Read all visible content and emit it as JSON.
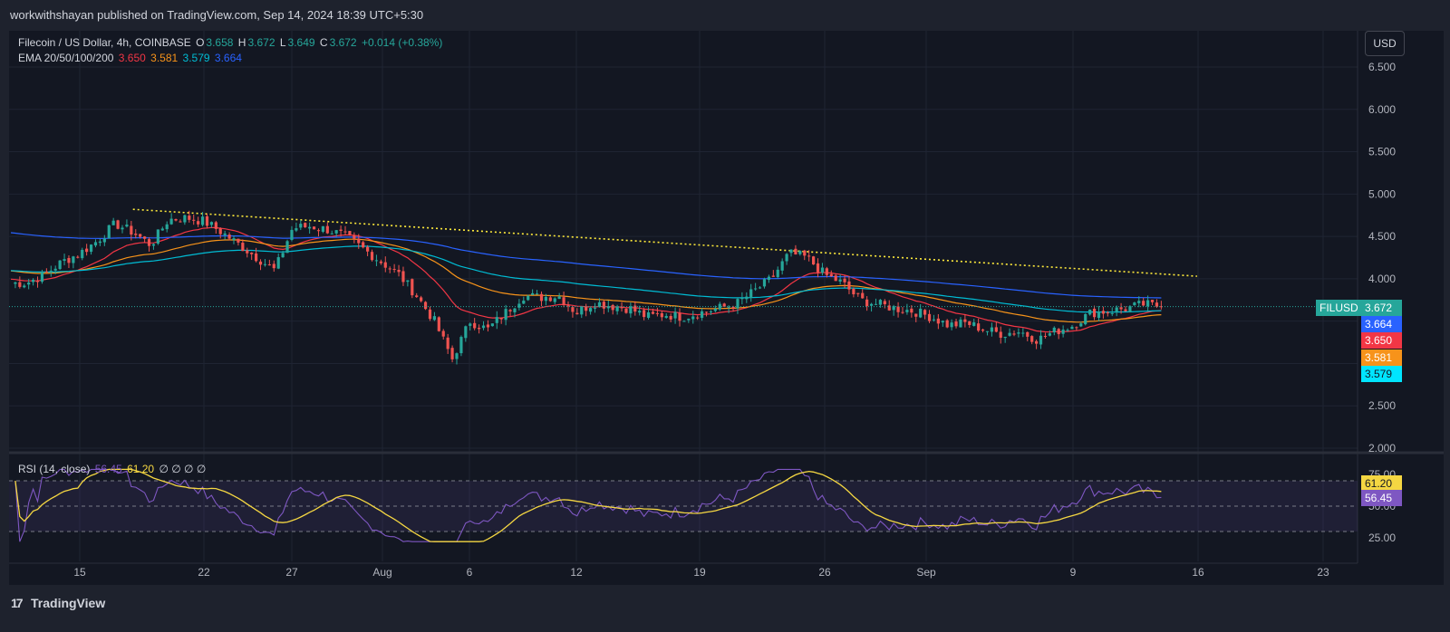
{
  "publisher": "workwithshayan published on TradingView.com, Sep 14, 2024 18:39 UTC+5:30",
  "legend": {
    "symbol": "Filecoin / US Dollar, 4h, COINBASE",
    "o_label": "O",
    "o": "3.658",
    "h_label": "H",
    "h": "3.672",
    "l_label": "L",
    "l": "3.649",
    "c_label": "C",
    "c": "3.672",
    "change": "+0.014 (+0.38%)",
    "ema_label": "EMA 20/50/100/200",
    "ema20": "3.650",
    "ema50": "3.581",
    "ema100": "3.579",
    "ema200": "3.664"
  },
  "rsi_legend": {
    "label": "RSI (14, close)",
    "rsi": "56.45",
    "ma": "61.20",
    "empties": "∅ ∅ ∅ ∅"
  },
  "currency_button": "USD",
  "ticker_badge": "FILUSD",
  "badges": {
    "price": "3.672",
    "ema200": "3.664",
    "ema20": "3.650",
    "ema50": "3.581",
    "ema100": "3.579",
    "rsi_ma": "61.20",
    "rsi": "56.45"
  },
  "branding": "TradingView",
  "colors": {
    "up": "#26a69a",
    "down": "#ef5350",
    "ema20": "#f23645",
    "ema50": "#f7931a",
    "ema100": "#00bcd4",
    "ema200": "#2962ff",
    "rsi": "#7e57c2",
    "rsi_ma": "#f5d742",
    "trendline": "#ffeb3b"
  },
  "chart_data": [
    {
      "type": "candlestick",
      "title": "Filecoin / US Dollar, 4h, COINBASE",
      "x_ticks": [
        "15",
        "22",
        "27",
        "Aug",
        "6",
        "12",
        "19",
        "26",
        "Sep",
        "9",
        "16",
        "23"
      ],
      "y_ticks": [
        "6.500",
        "6.000",
        "5.500",
        "5.000",
        "4.500",
        "4.000",
        "2.500",
        "2.000"
      ],
      "ylim": [
        2.0,
        6.75
      ],
      "last_price": 3.672,
      "close_path": [
        [
          "Jul 12",
          3.95
        ],
        [
          "Jul 13",
          4.05
        ],
        [
          "Jul 14",
          4.2
        ],
        [
          "Jul 15",
          4.3
        ],
        [
          "Jul 16",
          4.45
        ],
        [
          "Jul 17",
          4.65
        ],
        [
          "Jul 18",
          4.55
        ],
        [
          "Jul 19",
          4.4
        ],
        [
          "Jul 20",
          4.7
        ],
        [
          "Jul 21",
          4.72
        ],
        [
          "Jul 22",
          4.68
        ],
        [
          "Jul 23",
          4.55
        ],
        [
          "Jul 24",
          4.4
        ],
        [
          "Jul 25",
          4.25
        ],
        [
          "Jul 26",
          4.1
        ],
        [
          "Jul 27",
          4.6
        ],
        [
          "Jul 28",
          4.62
        ],
        [
          "Jul 29",
          4.58
        ],
        [
          "Jul 30",
          4.5
        ],
        [
          "Jul 31",
          4.35
        ],
        [
          "Aug 1",
          4.2
        ],
        [
          "Aug 2",
          4.05
        ],
        [
          "Aug 3",
          3.8
        ],
        [
          "Aug 4",
          3.5
        ],
        [
          "Aug 5",
          3.05
        ],
        [
          "Aug 6",
          3.5
        ],
        [
          "Aug 7",
          3.4
        ],
        [
          "Aug 8",
          3.6
        ],
        [
          "Aug 9",
          3.8
        ],
        [
          "Aug 10",
          3.78
        ],
        [
          "Aug 11",
          3.8
        ],
        [
          "Aug 12",
          3.6
        ],
        [
          "Aug 13",
          3.72
        ],
        [
          "Aug 14",
          3.68
        ],
        [
          "Aug 15",
          3.65
        ],
        [
          "Aug 16",
          3.55
        ],
        [
          "Aug 17",
          3.58
        ],
        [
          "Aug 18",
          3.55
        ],
        [
          "Aug 19",
          3.6
        ],
        [
          "Aug 20",
          3.65
        ],
        [
          "Aug 21",
          3.7
        ],
        [
          "Aug 22",
          3.85
        ],
        [
          "Aug 23",
          4.0
        ],
        [
          "Aug 24",
          4.3
        ],
        [
          "Aug 25",
          4.25
        ],
        [
          "Aug 26",
          4.05
        ],
        [
          "Aug 27",
          3.95
        ],
        [
          "Aug 28",
          3.75
        ],
        [
          "Aug 29",
          3.7
        ],
        [
          "Aug 30",
          3.65
        ],
        [
          "Aug 31",
          3.62
        ],
        [
          "Sep 1",
          3.55
        ],
        [
          "Sep 2",
          3.45
        ],
        [
          "Sep 3",
          3.48
        ],
        [
          "Sep 4",
          3.4
        ],
        [
          "Sep 5",
          3.35
        ],
        [
          "Sep 6",
          3.38
        ],
        [
          "Sep 7",
          3.28
        ],
        [
          "Sep 8",
          3.38
        ],
        [
          "Sep 9",
          3.45
        ],
        [
          "Sep 10",
          3.6
        ],
        [
          "Sep 11",
          3.62
        ],
        [
          "Sep 12",
          3.65
        ],
        [
          "Sep 13",
          3.7
        ],
        [
          "Sep 14",
          3.672
        ]
      ],
      "ema_last": {
        "EMA 20": 3.65,
        "EMA 50": 3.581,
        "EMA 100": 3.579,
        "EMA 200": 3.664
      },
      "trendline": {
        "style": "dotted",
        "from": [
          "Jul 18",
          4.82
        ],
        "to": [
          "Sep 16",
          4.03
        ]
      }
    },
    {
      "type": "line",
      "title": "RSI (14, close)",
      "y_ticks": [
        "75.00",
        "50.00",
        "25.00"
      ],
      "ylim": [
        22,
        80
      ],
      "bands": [
        70,
        50,
        30
      ],
      "series": [
        {
          "name": "RSI",
          "last": 56.45
        },
        {
          "name": "RSI MA",
          "last": 61.2
        }
      ]
    }
  ]
}
